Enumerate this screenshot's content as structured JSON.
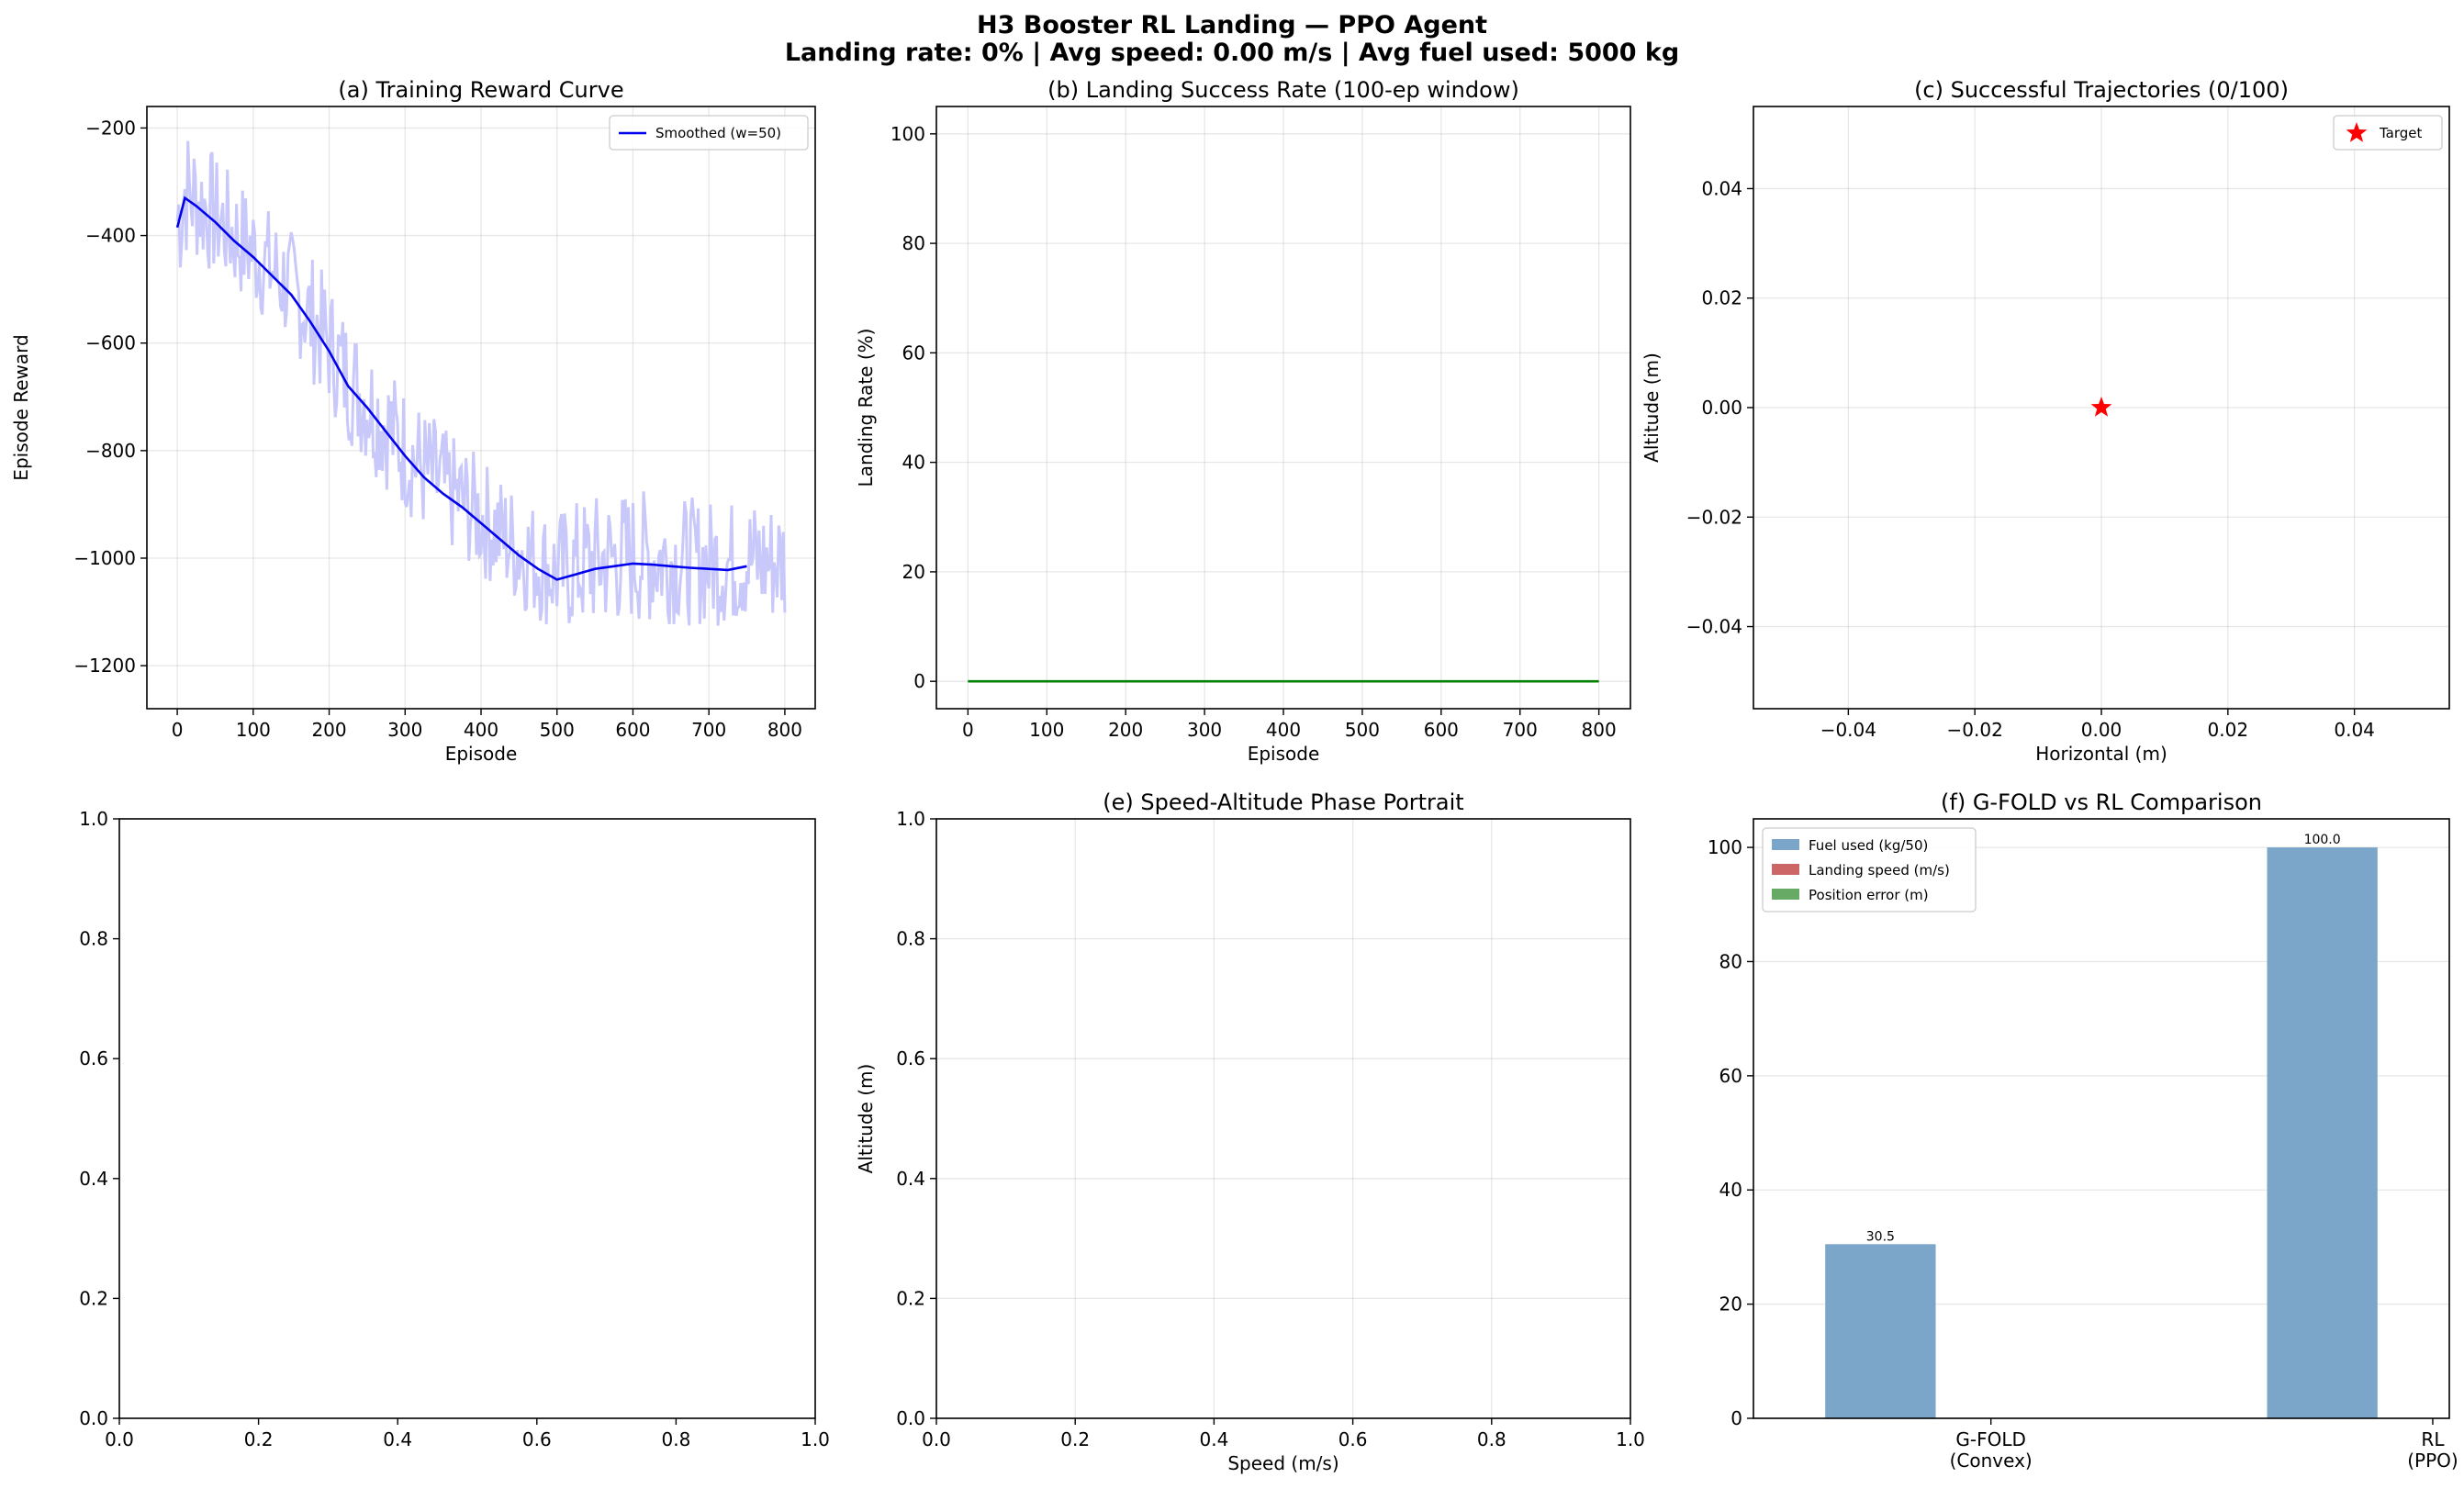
{
  "figure": {
    "title_line1": "H3 Booster RL Landing — PPO Agent",
    "title_line2": "Landing rate: 0%  |  Avg speed: 0.00 m/s  |  Avg fuel used: 5000 kg"
  },
  "colors": {
    "raw_reward": "#c8c8fa",
    "smoothed_reward": "#0000ee",
    "landing_rate": "#008000",
    "target": "#ff0000",
    "fuel_bar": "#7ba6c9",
    "speed_bar": "#cc6666",
    "position_bar": "#66aa66"
  },
  "chart_data": [
    {
      "id": "a",
      "type": "line",
      "title": "(a) Training Reward Curve",
      "xlabel": "Episode",
      "ylabel": "Episode Reward",
      "xlim": [
        -40,
        840
      ],
      "ylim": [
        -1280,
        -160
      ],
      "xticks": [
        0,
        100,
        200,
        300,
        400,
        500,
        600,
        700,
        800
      ],
      "yticks": [
        -1200,
        -1000,
        -800,
        -600,
        -400,
        -200
      ],
      "grid": true,
      "legend": {
        "placement": "upper right",
        "entries": [
          "Smoothed (w=50)"
        ]
      },
      "series": [
        {
          "name": "Smoothed (w=50)",
          "style": "smoothed",
          "x": [
            0,
            10,
            25,
            50,
            75,
            100,
            125,
            150,
            175,
            200,
            225,
            250,
            275,
            300,
            325,
            350,
            375,
            400,
            425,
            450,
            475,
            500,
            525,
            550,
            575,
            600,
            625,
            650,
            675,
            700,
            725,
            750
          ],
          "y": [
            -385,
            -330,
            -345,
            -375,
            -410,
            -440,
            -475,
            -510,
            -560,
            -615,
            -680,
            -720,
            -765,
            -810,
            -850,
            -880,
            -905,
            -935,
            -965,
            -995,
            -1020,
            -1040,
            -1030,
            -1020,
            -1015,
            -1010,
            -1012,
            -1015,
            -1018,
            -1020,
            -1022,
            -1015
          ]
        }
      ],
      "raw_series": {
        "style": "raw",
        "x": [
          0,
          10,
          25,
          50,
          75,
          100,
          125,
          150,
          175,
          200,
          225,
          250,
          275,
          300,
          325,
          350,
          375,
          400,
          425,
          450,
          475,
          500,
          525,
          550,
          575,
          600,
          625,
          650,
          675,
          700,
          725,
          750,
          775,
          800
        ],
        "y": [
          -385,
          -330,
          -345,
          -375,
          -410,
          -440,
          -475,
          -510,
          -560,
          -615,
          -680,
          -720,
          -765,
          -810,
          -850,
          -880,
          -905,
          -935,
          -965,
          -995,
          -1020,
          -1040,
          -1030,
          -1020,
          -1015,
          -1010,
          -1012,
          -1015,
          -1018,
          -1020,
          -1022,
          -1015,
          -1020,
          -1018
        ],
        "spread": [
          180,
          160,
          150,
          140,
          140,
          140,
          140,
          140,
          150,
          150,
          150,
          150,
          150,
          150,
          150,
          140,
          140,
          140,
          140,
          140,
          140,
          150,
          160,
          160,
          160,
          160,
          150,
          150,
          150,
          150,
          150,
          150,
          150,
          150
        ]
      }
    },
    {
      "id": "b",
      "type": "line",
      "title": "(b) Landing Success Rate (100-ep window)",
      "xlabel": "Episode",
      "ylabel": "Landing Rate (%)",
      "xlim": [
        -40,
        840
      ],
      "ylim": [
        -5,
        105
      ],
      "xticks": [
        0,
        100,
        200,
        300,
        400,
        500,
        600,
        700,
        800
      ],
      "yticks": [
        0,
        20,
        40,
        60,
        80,
        100
      ],
      "grid": true,
      "series": [
        {
          "x": [
            0,
            800
          ],
          "y": [
            0,
            0
          ]
        }
      ]
    },
    {
      "id": "c",
      "type": "scatter",
      "title": "(c) Successful Trajectories (0/100)",
      "xlabel": "Horizontal (m)",
      "ylabel": "Altitude (m)",
      "xlim": [
        -0.055,
        0.055
      ],
      "ylim": [
        -0.055,
        0.055
      ],
      "xticks": [
        -0.04,
        -0.02,
        0.0,
        0.02,
        0.04
      ],
      "yticks": [
        -0.04,
        -0.02,
        0.0,
        0.02,
        0.04
      ],
      "xtick_labels": [
        "−0.04",
        "−0.02",
        "0.00",
        "0.02",
        "0.04"
      ],
      "ytick_labels": [
        "−0.04",
        "−0.02",
        "0.00",
        "0.02",
        "0.04"
      ],
      "grid": true,
      "legend": {
        "placement": "upper right",
        "entries": [
          "Target"
        ]
      },
      "points": [
        {
          "name": "Target",
          "x": 0.0,
          "y": 0.0,
          "marker": "star"
        }
      ]
    },
    {
      "id": "d",
      "type": "line",
      "title": "",
      "xlabel": "",
      "ylabel": "",
      "xlim": [
        0,
        1
      ],
      "ylim": [
        0,
        1
      ],
      "xticks": [
        0.0,
        0.2,
        0.4,
        0.6,
        0.8,
        1.0
      ],
      "yticks": [
        0.0,
        0.2,
        0.4,
        0.6,
        0.8,
        1.0
      ],
      "xtick_labels": [
        "0.0",
        "0.2",
        "0.4",
        "0.6",
        "0.8",
        "1.0"
      ],
      "ytick_labels": [
        "0.0",
        "0.2",
        "0.4",
        "0.6",
        "0.8",
        "1.0"
      ],
      "grid": false,
      "series": []
    },
    {
      "id": "e",
      "type": "line",
      "title": "(e) Speed-Altitude Phase Portrait",
      "xlabel": "Speed (m/s)",
      "ylabel": "Altitude (m)",
      "xlim": [
        0,
        1
      ],
      "ylim": [
        0,
        1
      ],
      "xticks": [
        0.0,
        0.2,
        0.4,
        0.6,
        0.8,
        1.0
      ],
      "yticks": [
        0.0,
        0.2,
        0.4,
        0.6,
        0.8,
        1.0
      ],
      "xtick_labels": [
        "0.0",
        "0.2",
        "0.4",
        "0.6",
        "0.8",
        "1.0"
      ],
      "ytick_labels": [
        "0.0",
        "0.2",
        "0.4",
        "0.6",
        "0.8",
        "1.0"
      ],
      "grid": true,
      "series": []
    },
    {
      "id": "f",
      "type": "bar",
      "title": "(f) G-FOLD vs RL Comparison",
      "xlabel": "",
      "ylabel": "",
      "categories": [
        [
          "G-FOLD",
          "(Convex)"
        ],
        [
          "RL",
          "(PPO)"
        ]
      ],
      "ylim": [
        0,
        105
      ],
      "yticks": [
        0,
        20,
        40,
        60,
        80,
        100
      ],
      "grid": true,
      "legend": {
        "placement": "upper left",
        "entries": [
          "Fuel used (kg/50)",
          "Landing speed (m/s)",
          "Position error (m)"
        ]
      },
      "series": [
        {
          "name": "Fuel used (kg/50)",
          "values": [
            30.5,
            100.0
          ],
          "labels": [
            "30.5",
            "100.0"
          ]
        },
        {
          "name": "Landing speed (m/s)",
          "values": [
            0,
            0
          ]
        },
        {
          "name": "Position error (m)",
          "values": [
            0,
            0
          ]
        }
      ]
    }
  ]
}
